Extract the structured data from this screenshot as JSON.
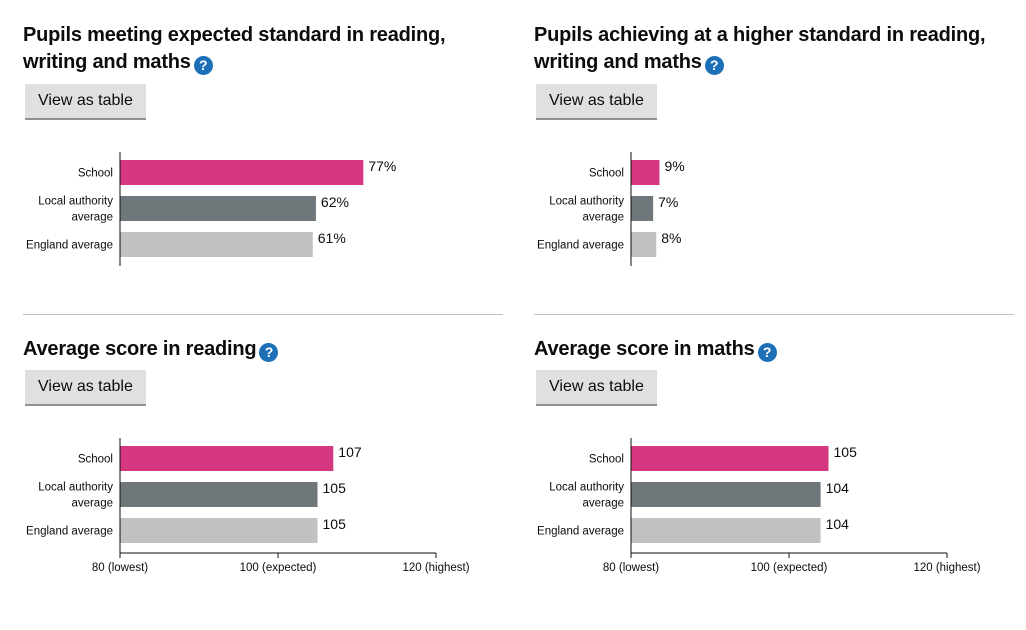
{
  "colors": {
    "school": "#d53880",
    "local_authority": "#6f777b",
    "england": "#bfc1c3",
    "axis": "#0b0c0c",
    "help_icon": "#1d70b8"
  },
  "help_icon_glyph": "?",
  "button_label": "View as table",
  "categories_display": [
    {
      "lines": [
        "School"
      ]
    },
    {
      "lines": [
        "Local authority",
        "average"
      ]
    },
    {
      "lines": [
        "England average"
      ]
    }
  ],
  "chart_data": [
    {
      "type": "bar",
      "orientation": "horizontal",
      "title": "Pupils meeting expected standard in reading, writing and maths",
      "categories": [
        "School",
        "Local authority average",
        "England average"
      ],
      "values": [
        77,
        62,
        61
      ],
      "value_labels": [
        "77%",
        "62%",
        "61%"
      ],
      "xlim": [
        0,
        100
      ],
      "ticks": []
    },
    {
      "type": "bar",
      "orientation": "horizontal",
      "title": "Pupils achieving at a higher standard in reading, writing and maths",
      "categories": [
        "School",
        "Local authority average",
        "England average"
      ],
      "values": [
        9,
        7,
        8
      ],
      "value_labels": [
        "9%",
        "7%",
        "8%"
      ],
      "xlim": [
        0,
        100
      ],
      "ticks": []
    },
    {
      "type": "bar",
      "orientation": "horizontal",
      "title": "Average score in reading",
      "categories": [
        "School",
        "Local authority average",
        "England average"
      ],
      "values": [
        107,
        105,
        105
      ],
      "value_labels": [
        "107",
        "105",
        "105"
      ],
      "xlim": [
        80,
        120
      ],
      "ticks": [
        {
          "value": 80,
          "label": "80 (lowest)"
        },
        {
          "value": 100,
          "label": "100 (expected)"
        },
        {
          "value": 120,
          "label": "120 (highest)"
        }
      ]
    },
    {
      "type": "bar",
      "orientation": "horizontal",
      "title": "Average score in maths",
      "categories": [
        "School",
        "Local authority average",
        "England average"
      ],
      "values": [
        105,
        104,
        104
      ],
      "value_labels": [
        "105",
        "104",
        "104"
      ],
      "xlim": [
        80,
        120
      ],
      "ticks": [
        {
          "value": 80,
          "label": "80 (lowest)"
        },
        {
          "value": 100,
          "label": "100 (expected)"
        },
        {
          "value": 120,
          "label": "120 (highest)"
        }
      ]
    }
  ]
}
